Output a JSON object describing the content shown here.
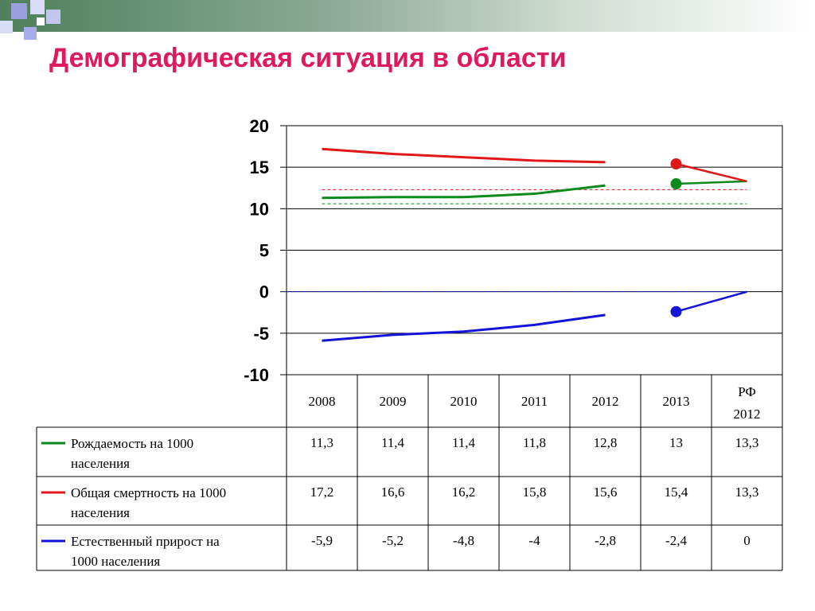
{
  "title": "Демографическая ситуация в области",
  "colors": {
    "title": "#e0185c",
    "birth": "#0a8a1a",
    "death": "#e01818",
    "growth": "#1414d8"
  },
  "chart_data": {
    "type": "line",
    "categories": [
      "2008",
      "2009",
      "2010",
      "2011",
      "2012",
      "2013",
      "РФ 2012"
    ],
    "yticks": [
      20,
      15,
      10,
      5,
      0,
      -5,
      -10
    ],
    "ylim": [
      -10,
      20
    ],
    "grid": true,
    "series": [
      {
        "name": "Рождаемость на 1000 населения",
        "color": "#0a8a1a",
        "values": [
          11.3,
          11.4,
          11.4,
          11.8,
          12.8,
          13,
          13.3
        ],
        "labels": [
          "11,3",
          "11,4",
          "11,4",
          "11,8",
          "12,8",
          "13",
          "13,3"
        ]
      },
      {
        "name": "Общая смертность на 1000 населения",
        "color": "#e01818",
        "values": [
          17.2,
          16.6,
          16.2,
          15.8,
          15.6,
          15.4,
          13.3
        ],
        "labels": [
          "17,2",
          "16,6",
          "16,2",
          "15,8",
          "15,6",
          "15,4",
          "13,3"
        ]
      },
      {
        "name": "Естественный прирост на 1000 населения",
        "color": "#1414d8",
        "values": [
          -5.9,
          -5.2,
          -4.8,
          -4,
          -2.8,
          -2.4,
          0
        ],
        "labels": [
          "-5,9",
          "-5,2",
          "-4,8",
          "-4",
          "-2,8",
          "-2,4",
          "0"
        ]
      }
    ]
  }
}
